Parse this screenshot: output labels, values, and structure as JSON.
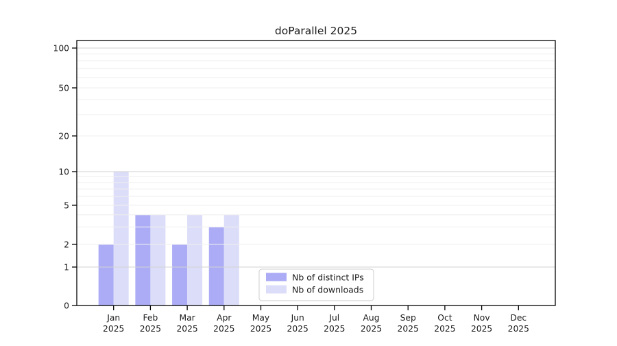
{
  "chart_data": {
    "type": "bar",
    "title": "doParallel 2025",
    "months": [
      "Jan",
      "Feb",
      "Mar",
      "Apr",
      "May",
      "Jun",
      "Jul",
      "Aug",
      "Sep",
      "Oct",
      "Nov",
      "Dec"
    ],
    "year": "2025",
    "series": [
      {
        "name": "Nb of distinct IPs",
        "color": "#abacf5",
        "values": [
          2,
          4,
          2,
          3,
          0,
          0,
          0,
          0,
          0,
          0,
          0,
          0
        ]
      },
      {
        "name": "Nb of downloads",
        "color": "#dcddf8",
        "values": [
          10,
          4,
          4,
          4,
          0,
          0,
          0,
          0,
          0,
          0,
          0,
          0
        ]
      }
    ],
    "y_ticks": [
      0,
      1,
      2,
      5,
      10,
      20,
      50,
      100
    ],
    "y_major_gridlines": [
      1,
      10,
      100
    ],
    "y_minor_gridlines": [
      2,
      3,
      4,
      5,
      6,
      7,
      8,
      9,
      20,
      30,
      40,
      50,
      60,
      70,
      80,
      90
    ],
    "axis_scale": "log above 1, linear 0-1",
    "ylim": [
      0,
      100
    ],
    "grid": "horizontal",
    "legend_position": "lower center, inside axes",
    "colors": {
      "major_grid": "#d2d2d2",
      "minor_grid": "#efefef",
      "axis": "#000000",
      "text": "#1a1a1a",
      "legend_border": "#cccccc",
      "legend_bg": "#ffffff"
    }
  }
}
